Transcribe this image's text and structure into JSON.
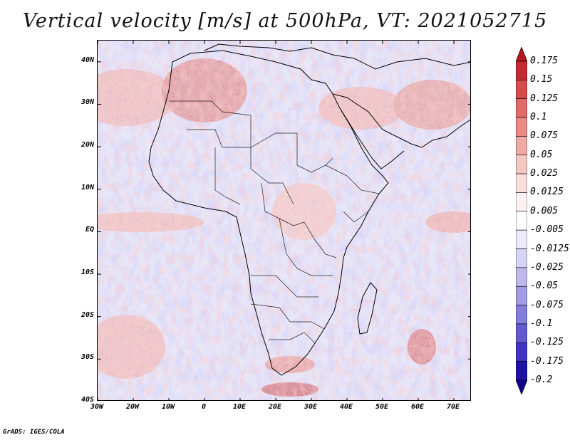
{
  "title": "Vertical velocity [m/s] at 500hPa, VT: 2021052715",
  "credit": "GrADS: IGES/COLA",
  "map": {
    "lon_range": [
      -30,
      75
    ],
    "lat_range": [
      -40,
      45
    ],
    "lat_labels": [
      "40N",
      "30N",
      "20N",
      "10N",
      "EQ",
      "10S",
      "20S",
      "30S",
      "40S"
    ],
    "lat_values": [
      40,
      30,
      20,
      10,
      0,
      -10,
      -20,
      -30,
      -40
    ],
    "lon_labels": [
      "30W",
      "20W",
      "10W",
      "0",
      "10E",
      "20E",
      "30E",
      "40E",
      "50E",
      "60E",
      "70E"
    ],
    "lon_values": [
      -30,
      -20,
      -10,
      0,
      10,
      20,
      30,
      40,
      50,
      60,
      70
    ]
  },
  "colorbar": {
    "labels": [
      "0.175",
      "0.15",
      "0.125",
      "0.1",
      "0.075",
      "0.05",
      "0.025",
      "0.0125",
      "0.005",
      "-0.005",
      "-0.0125",
      "-0.025",
      "-0.05",
      "-0.075",
      "-0.1",
      "-0.125",
      "-0.175",
      "-0.2"
    ],
    "colors": [
      "#b01822",
      "#c42a30",
      "#d64b4b",
      "#e26a66",
      "#ea8a85",
      "#f1a9a4",
      "#f6c6c2",
      "#fadedb",
      "#fdf2f1",
      "#ffffff",
      "#ecebfa",
      "#d6d4f4",
      "#bdb9ee",
      "#a19ce6",
      "#847ddc",
      "#635ad0",
      "#4034c0",
      "#2010a8",
      "#120090"
    ]
  }
}
